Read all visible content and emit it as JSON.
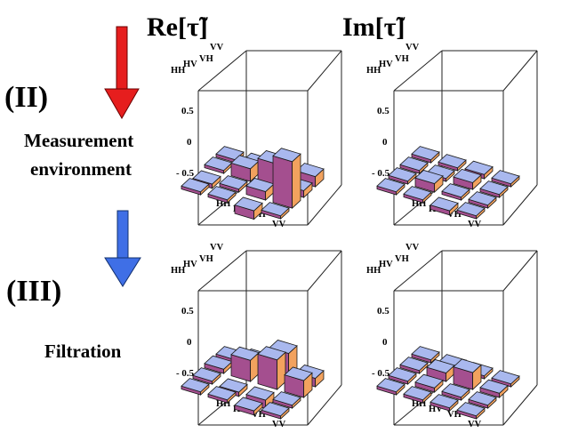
{
  "headers": {
    "re": "Re[τ̃]",
    "im": "Im[τ̃]"
  },
  "stages": [
    {
      "id": "II",
      "label": "(II)",
      "caption_lines": [
        "Measurement",
        "environment"
      ],
      "arrow": "red-arrow"
    },
    {
      "id": "III",
      "label": "(III)",
      "caption_lines": [
        "Filtration"
      ],
      "arrow": "blue-arrow"
    }
  ],
  "colors": {
    "red_arrow": "#e61e1e",
    "blue_arrow": "#3f6fe6",
    "bar_top": "#a9b8ee",
    "bar_side_light": "#a44f8f",
    "bar_side_dark": "#f2a25e",
    "bar_outline": "#1a1a1a"
  },
  "axis_labels": {
    "back": [
      "HH",
      "HV",
      "VH",
      "VV"
    ],
    "front": [
      "HH",
      "HV",
      "VH",
      "VV"
    ],
    "ticks": [
      "0.5",
      "0",
      "- 0.5"
    ]
  },
  "chart_data": [
    {
      "type": "bar3d",
      "stage": "II",
      "part": "Re",
      "rows": [
        "HH",
        "HV",
        "VH",
        "VV"
      ],
      "cols": [
        "HH",
        "HV",
        "VH",
        "VV"
      ],
      "zlim": [
        -0.5,
        0.5
      ],
      "values": [
        [
          0.02,
          0.05,
          0.1,
          0.12
        ],
        [
          0.0,
          0.15,
          0.3,
          0.08
        ],
        [
          -0.05,
          0.0,
          0.1,
          0.55
        ],
        [
          0.0,
          -0.02,
          -0.1,
          0.0
        ]
      ]
    },
    {
      "type": "bar3d",
      "stage": "II",
      "part": "Im",
      "rows": [
        "HH",
        "HV",
        "VH",
        "VV"
      ],
      "cols": [
        "HH",
        "HV",
        "VH",
        "VV"
      ],
      "zlim": [
        -0.5,
        0.5
      ],
      "values": [
        [
          0.0,
          0.02,
          0.05,
          0.0
        ],
        [
          0.03,
          0.0,
          0.08,
          0.02
        ],
        [
          0.0,
          0.1,
          0.0,
          0.0
        ],
        [
          0.0,
          0.0,
          -0.05,
          0.0
        ]
      ]
    },
    {
      "type": "bar3d",
      "stage": "III",
      "part": "Re",
      "rows": [
        "HH",
        "HV",
        "VH",
        "VV"
      ],
      "cols": [
        "HH",
        "HV",
        "VH",
        "VV"
      ],
      "zlim": [
        -0.5,
        0.5
      ],
      "values": [
        [
          0.0,
          0.1,
          0.3,
          0.1
        ],
        [
          0.05,
          0.25,
          0.35,
          0.2
        ],
        [
          0.0,
          -0.05,
          -0.1,
          0.0
        ],
        [
          0.0,
          0.0,
          -0.05,
          0.0
        ]
      ]
    },
    {
      "type": "bar3d",
      "stage": "III",
      "part": "Im",
      "rows": [
        "HH",
        "HV",
        "VH",
        "VV"
      ],
      "cols": [
        "HH",
        "HV",
        "VH",
        "VV"
      ],
      "zlim": [
        -0.5,
        0.5
      ],
      "values": [
        [
          0.0,
          0.02,
          0.0,
          0.0
        ],
        [
          0.03,
          0.1,
          0.2,
          0.05
        ],
        [
          0.0,
          0.05,
          0.0,
          0.0
        ],
        [
          0.0,
          0.0,
          0.0,
          0.0
        ]
      ]
    }
  ]
}
